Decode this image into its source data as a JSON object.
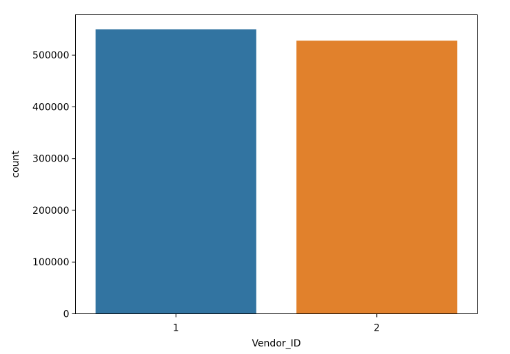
{
  "chart_data": {
    "type": "bar",
    "title": "",
    "xlabel": "Vendor_ID",
    "ylabel": "count",
    "categories": [
      "1",
      "2"
    ],
    "values": [
      550000,
      528000
    ],
    "ylim": [
      0,
      578000
    ],
    "yticks": [
      0,
      100000,
      200000,
      300000,
      400000,
      500000
    ],
    "ytick_labels": [
      "0",
      "100000",
      "200000",
      "300000",
      "400000",
      "500000"
    ],
    "colors": [
      "#3274a1",
      "#e1812c"
    ],
    "grid": false,
    "legend": "none"
  }
}
